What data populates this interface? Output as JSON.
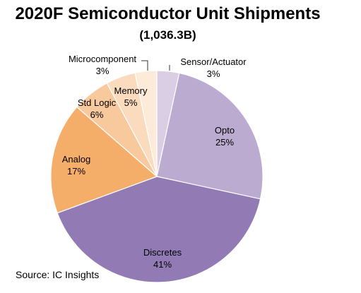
{
  "chart_data": {
    "type": "pie",
    "title": "2020F Semiconductor Unit Shipments",
    "subtitle": "(1,036.3B)",
    "source": "Source:  IC Insights",
    "slices": [
      {
        "label": "Sensor/Actuator",
        "value_label": "3%",
        "value": 3.4,
        "color": "#D9CEE3"
      },
      {
        "label": "Opto",
        "value_label": "25%",
        "value": 25,
        "color": "#BCABD0"
      },
      {
        "label": "Discretes",
        "value_label": "41%",
        "value": 41,
        "color": "#927BB5"
      },
      {
        "label": "Analog",
        "value_label": "17%",
        "value": 17,
        "color": "#F5AE6A"
      },
      {
        "label": "Std Logic",
        "value_label": "6%",
        "value": 5.8,
        "color": "#F8C99D"
      },
      {
        "label": "Memory",
        "value_label": "5%",
        "value": 4.5,
        "color": "#FADBBE"
      },
      {
        "label": "Microcomponent",
        "value_label": "3%",
        "value": 3.3,
        "color": "#FDEBDA"
      }
    ]
  }
}
